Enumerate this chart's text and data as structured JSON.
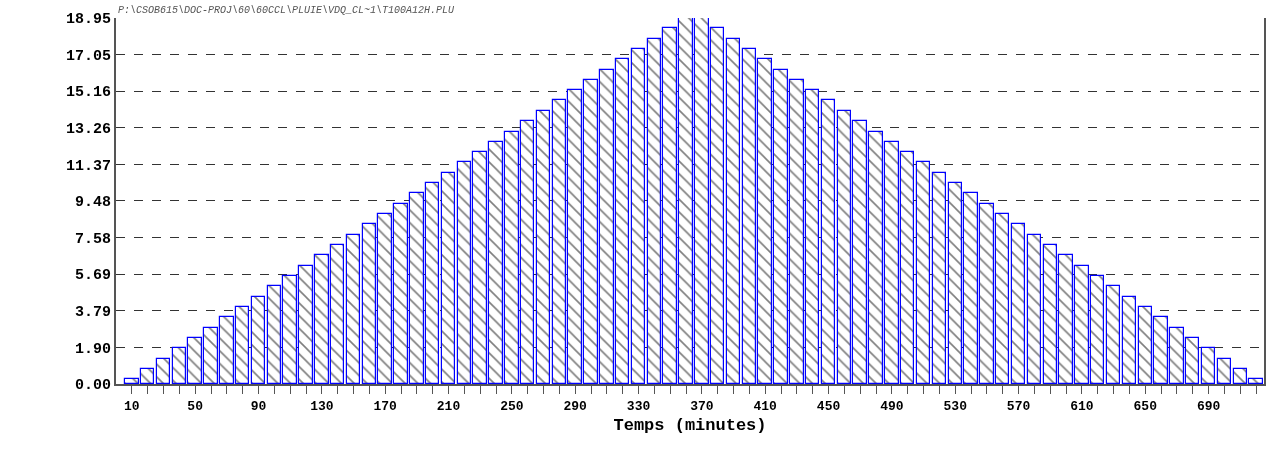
{
  "chart_data": {
    "type": "bar",
    "xlabel": "Temps (minutes)",
    "annotations": [
      "P:\\CSOB615\\DOC-PROJ\\60\\60CCL\\PLUIE\\VDQ_CL~1\\T100A12H.PLU"
    ],
    "x": [
      10,
      20,
      30,
      40,
      50,
      60,
      70,
      80,
      90,
      100,
      110,
      120,
      130,
      140,
      150,
      160,
      170,
      180,
      190,
      200,
      210,
      220,
      230,
      240,
      250,
      260,
      270,
      280,
      290,
      300,
      310,
      320,
      330,
      340,
      350,
      360,
      370,
      380,
      390,
      400,
      410,
      420,
      430,
      440,
      450,
      460,
      470,
      480,
      490,
      500,
      510,
      520,
      530,
      540,
      550,
      560,
      570,
      580,
      590,
      600,
      610,
      620,
      630,
      640,
      650,
      660,
      670,
      680,
      690,
      700,
      710,
      720
    ],
    "values": [
      0.25,
      0.78,
      1.32,
      1.85,
      2.39,
      2.92,
      3.46,
      3.99,
      4.52,
      5.06,
      5.59,
      6.13,
      6.66,
      7.2,
      7.73,
      8.26,
      8.8,
      9.33,
      9.87,
      10.4,
      10.94,
      11.47,
      12.0,
      12.54,
      13.07,
      13.61,
      14.14,
      14.68,
      15.21,
      15.74,
      16.28,
      16.81,
      17.35,
      17.88,
      18.42,
      18.95,
      18.95,
      18.42,
      17.88,
      17.35,
      16.81,
      16.28,
      15.74,
      15.21,
      14.68,
      14.14,
      13.61,
      13.07,
      12.54,
      12.0,
      11.47,
      10.94,
      10.4,
      9.87,
      9.33,
      8.8,
      8.26,
      7.73,
      7.2,
      6.66,
      6.13,
      5.59,
      5.06,
      4.52,
      3.99,
      3.46,
      2.92,
      2.39,
      1.85,
      1.32,
      0.78,
      0.25
    ],
    "color": "#0000ff",
    "xlim": [
      0,
      725
    ],
    "xticks": [
      10,
      {
        "value": 20,
        "label": null
      },
      {
        "value": 30,
        "label": null
      },
      {
        "value": 40,
        "label": null
      },
      50,
      {
        "value": 60,
        "label": null
      },
      {
        "value": 70,
        "label": null
      },
      {
        "value": 80,
        "label": null
      },
      90,
      {
        "value": 100,
        "label": null
      },
      {
        "value": 110,
        "label": null
      },
      {
        "value": 120,
        "label": null
      },
      130,
      {
        "value": 140,
        "label": null
      },
      {
        "value": 150,
        "label": null
      },
      {
        "value": 160,
        "label": null
      },
      170,
      {
        "value": 180,
        "label": null
      },
      {
        "value": 190,
        "label": null
      },
      {
        "value": 200,
        "label": null
      },
      210,
      {
        "value": 220,
        "label": null
      },
      {
        "value": 230,
        "label": null
      },
      {
        "value": 240,
        "label": null
      },
      250,
      {
        "value": 260,
        "label": null
      },
      {
        "value": 270,
        "label": null
      },
      {
        "value": 280,
        "label": null
      },
      290,
      {
        "value": 300,
        "label": null
      },
      {
        "value": 310,
        "label": null
      },
      {
        "value": 320,
        "label": null
      },
      330,
      {
        "value": 340,
        "label": null
      },
      {
        "value": 350,
        "label": null
      },
      {
        "value": 360,
        "label": null
      },
      370,
      {
        "value": 380,
        "label": null
      },
      {
        "value": 390,
        "label": null
      },
      {
        "value": 400,
        "label": null
      },
      410,
      {
        "value": 420,
        "label": null
      },
      {
        "value": 430,
        "label": null
      },
      {
        "value": 440,
        "label": null
      },
      450,
      {
        "value": 460,
        "label": null
      },
      {
        "value": 470,
        "label": null
      },
      {
        "value": 480,
        "label": null
      },
      490,
      {
        "value": 500,
        "label": null
      },
      {
        "value": 510,
        "label": null
      },
      {
        "value": 520,
        "label": null
      },
      530,
      {
        "value": 540,
        "label": null
      },
      {
        "value": 550,
        "label": null
      },
      {
        "value": 560,
        "label": null
      },
      570,
      {
        "value": 580,
        "label": null
      },
      {
        "value": 590,
        "label": null
      },
      {
        "value": 600,
        "label": null
      },
      610,
      {
        "value": 620,
        "label": null
      },
      {
        "value": 630,
        "label": null
      },
      {
        "value": 640,
        "label": null
      },
      650,
      {
        "value": 660,
        "label": null
      },
      {
        "value": 670,
        "label": null
      },
      {
        "value": 680,
        "label": null
      },
      690,
      {
        "value": 700,
        "label": null
      },
      {
        "value": 710,
        "label": null
      },
      {
        "value": 720,
        "label": null
      }
    ],
    "ylim": [
      0,
      18.95
    ],
    "yticks": [
      {
        "value": 0,
        "label": "0.00"
      },
      {
        "value": 1.9,
        "label": "1.90"
      },
      3.79,
      5.69,
      7.58,
      9.48,
      11.37,
      13.26,
      15.16,
      17.05,
      18.95
    ],
    "grid": "y",
    "line_style": "dashed"
  }
}
